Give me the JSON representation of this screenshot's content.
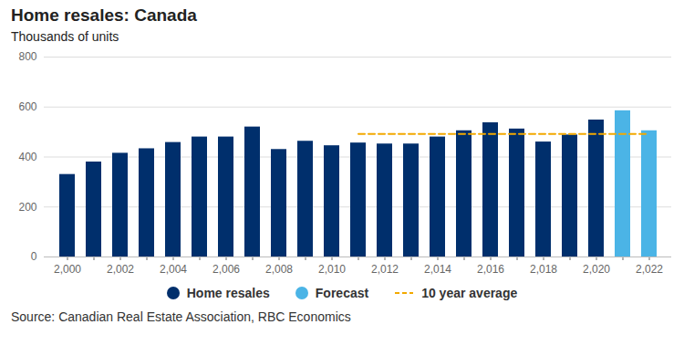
{
  "chart_data": {
    "type": "bar",
    "title": "Home resales: Canada",
    "subtitle": "Thousands of units",
    "source": "Source: Canadian Real Estate Association, RBC Economics",
    "categories": [
      2000,
      null,
      2002,
      null,
      2004,
      null,
      2006,
      null,
      2008,
      null,
      2010,
      null,
      2012,
      null,
      2014,
      null,
      2016,
      null,
      2018,
      null,
      2020,
      null,
      2022
    ],
    "series": [
      {
        "name": "Home resales",
        "type": "bar",
        "color": "#002f6c",
        "values": [
          330,
          380,
          415,
          433,
          458,
          480,
          480,
          520,
          430,
          463,
          445,
          456,
          452,
          452,
          480,
          505,
          537,
          512,
          460,
          488,
          548,
          null,
          null
        ]
      },
      {
        "name": "Forecast",
        "type": "bar",
        "color": "#4bb4e6",
        "values": [
          null,
          null,
          null,
          null,
          null,
          null,
          null,
          null,
          null,
          null,
          null,
          null,
          null,
          null,
          null,
          null,
          null,
          null,
          null,
          null,
          null,
          585,
          505
        ]
      },
      {
        "name": "10 year average",
        "type": "line",
        "line_style": "dashed",
        "color": "#f2a900",
        "values": [
          null,
          null,
          null,
          null,
          null,
          null,
          null,
          null,
          null,
          null,
          null,
          492,
          492,
          492,
          492,
          492,
          492,
          492,
          492,
          492,
          492,
          492,
          492
        ]
      }
    ],
    "ylim": [
      0,
      800
    ],
    "yticks": [
      0,
      200,
      400,
      600,
      800
    ],
    "grid": true,
    "legend": "bottom"
  }
}
